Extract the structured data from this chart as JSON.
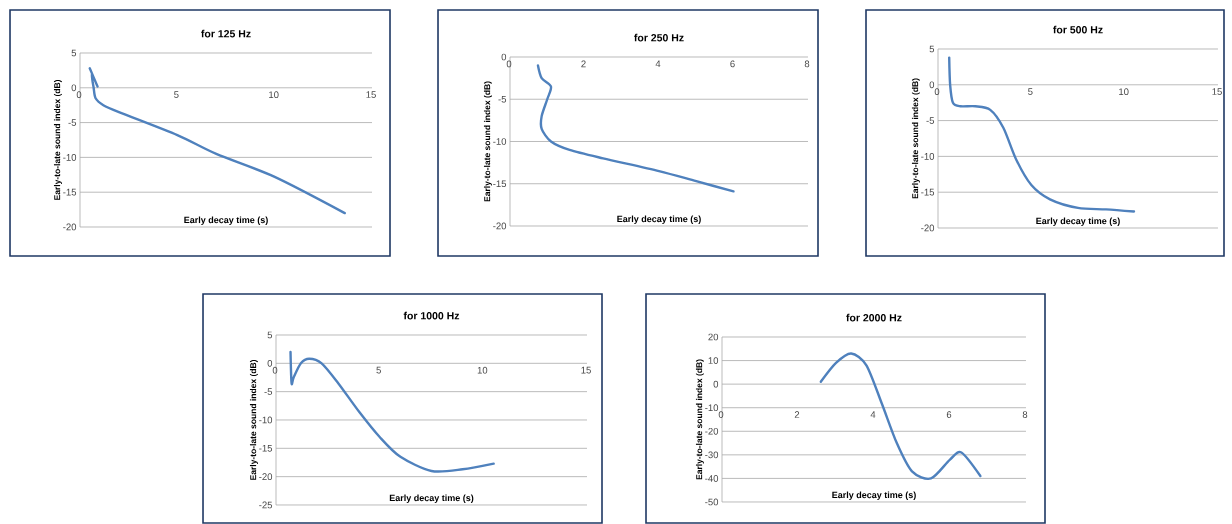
{
  "chart_data": [
    {
      "type": "line",
      "title": "for 125 Hz",
      "xlabel": "Early decay time (s)",
      "ylabel": "Early-to-late sound index (dB)",
      "color": "#4f81bd",
      "grid": "y",
      "xlim": [
        0,
        15
      ],
      "ylim": [
        -20,
        5
      ],
      "xticks": [
        0,
        5,
        10,
        15
      ],
      "yticks": [
        -20,
        -15,
        -10,
        -5,
        0,
        5
      ],
      "x": [
        0.5,
        0.9,
        0.6,
        0.7,
        0.8,
        1.2,
        2,
        5,
        7,
        10,
        13.6
      ],
      "values": [
        2.8,
        0.2,
        2,
        0,
        -1.5,
        -2.5,
        -3.5,
        -6.8,
        -9.5,
        -12.8,
        -18
      ]
    },
    {
      "type": "line",
      "title": "for 250 Hz",
      "xlabel": "Early decay time (s)",
      "ylabel": "Early-to-late sound index (dB)",
      "color": "#4f81bd",
      "grid": "y",
      "xlim": [
        0,
        8
      ],
      "ylim": [
        -20,
        0
      ],
      "xticks": [
        0,
        2,
        4,
        6,
        8
      ],
      "yticks": [
        -20,
        -15,
        -10,
        -5,
        0
      ],
      "x": [
        0.75,
        0.85,
        1.1,
        1,
        0.85,
        0.85,
        1.1,
        1.6,
        2.5,
        4,
        5,
        6
      ],
      "values": [
        -1,
        -2.5,
        -3.5,
        -5,
        -7,
        -8.5,
        -10,
        -11,
        -12,
        -13.5,
        -14.7,
        -15.9
      ]
    },
    {
      "type": "line",
      "title": "for 500 Hz",
      "xlabel": "Early decay time (s)",
      "ylabel": "Early-to-late sound index (dB)",
      "color": "#4f81bd",
      "grid": "y",
      "xlim": [
        0,
        15
      ],
      "ylim": [
        -20,
        5
      ],
      "xticks": [
        0,
        5,
        10,
        15
      ],
      "yticks": [
        -20,
        -15,
        -10,
        -5,
        0,
        5
      ],
      "x": [
        0.6,
        0.65,
        0.8,
        1.2,
        2,
        2.8,
        3.5,
        4.2,
        5,
        6,
        7.5,
        9,
        10.5
      ],
      "values": [
        3.8,
        0,
        -2.5,
        -3,
        -3,
        -3.5,
        -6,
        -10.5,
        -14,
        -16,
        -17.2,
        -17.4,
        -17.7
      ]
    },
    {
      "type": "line",
      "title": "for 1000 Hz",
      "xlabel": "Early decay time (s)",
      "ylabel": "Early-to-late sound index (dB)",
      "color": "#4f81bd",
      "grid": "y",
      "xlim": [
        0,
        15
      ],
      "ylim": [
        -25,
        5
      ],
      "xticks": [
        0,
        5,
        10,
        15
      ],
      "yticks": [
        -25,
        -20,
        -15,
        -10,
        -5,
        0,
        5
      ],
      "x": [
        0.7,
        0.75,
        0.85,
        1.2,
        1.6,
        2.2,
        3,
        4,
        5,
        6,
        7.5,
        9,
        10.5
      ],
      "values": [
        2,
        -3.5,
        -2.5,
        0,
        0.8,
        0,
        -3.5,
        -8.5,
        -13,
        -16.5,
        -19,
        -18.7,
        -17.7
      ]
    },
    {
      "type": "line",
      "title": "for 2000 Hz",
      "xlabel": "Early decay time (s)",
      "ylabel": "Early-to-late sound index (dB)",
      "color": "#4f81bd",
      "grid": "y",
      "xlim": [
        0,
        8
      ],
      "ylim": [
        -50,
        20
      ],
      "xticks": [
        0,
        2,
        4,
        6,
        8
      ],
      "yticks": [
        -50,
        -40,
        -30,
        -20,
        -10,
        0,
        10,
        20
      ],
      "x": [
        2.6,
        3,
        3.4,
        3.8,
        4.2,
        4.6,
        5,
        5.5,
        6,
        6.3,
        6.8
      ],
      "values": [
        1,
        9,
        13,
        8,
        -8,
        -25,
        -37,
        -40,
        -32,
        -29,
        -39
      ]
    }
  ]
}
